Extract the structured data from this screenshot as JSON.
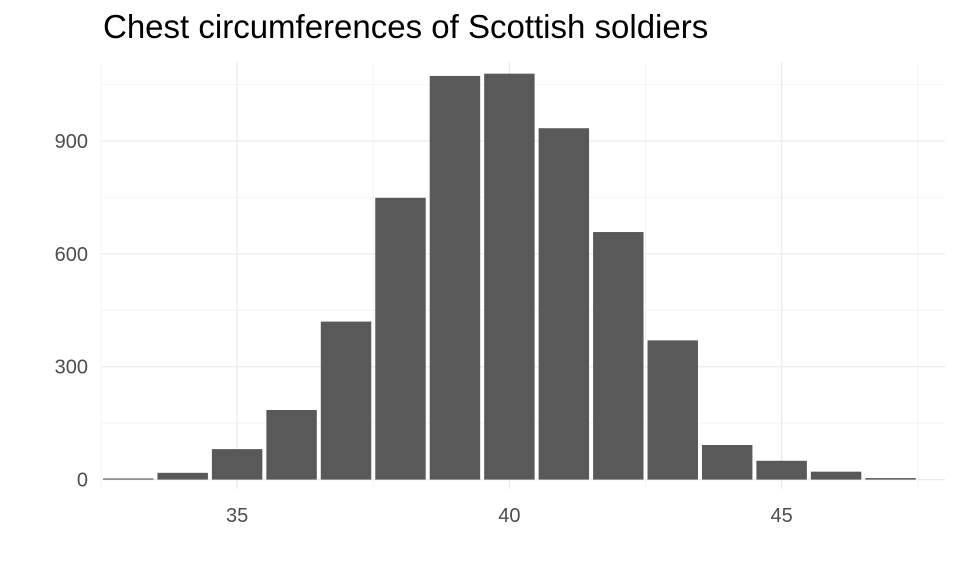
{
  "chart_data": {
    "type": "bar",
    "title": "Chest circumferences of Scottish soldiers",
    "xlabel": "",
    "ylabel": "",
    "x": [
      33,
      34,
      35,
      36,
      37,
      38,
      39,
      40,
      41,
      42,
      43,
      44,
      45,
      46,
      47
    ],
    "values": [
      3,
      18,
      81,
      185,
      420,
      749,
      1073,
      1079,
      934,
      658,
      370,
      92,
      50,
      21,
      4
    ],
    "xlim": [
      32.5,
      48
    ],
    "ylim": [
      -25,
      1110
    ],
    "x_ticks": [
      35,
      40,
      45
    ],
    "y_ticks": [
      0,
      300,
      600,
      900
    ],
    "x_tick_labels": [
      "35",
      "40",
      "45"
    ],
    "y_tick_labels": [
      "0",
      "300",
      "600",
      "900"
    ],
    "grid": true,
    "legend": "none",
    "colors": {
      "bar": "#595959",
      "grid_major": "#ebebeb",
      "grid_minor": "#f4f4f4",
      "tick_text": "#4d4d4d",
      "background": "#ffffff"
    }
  }
}
